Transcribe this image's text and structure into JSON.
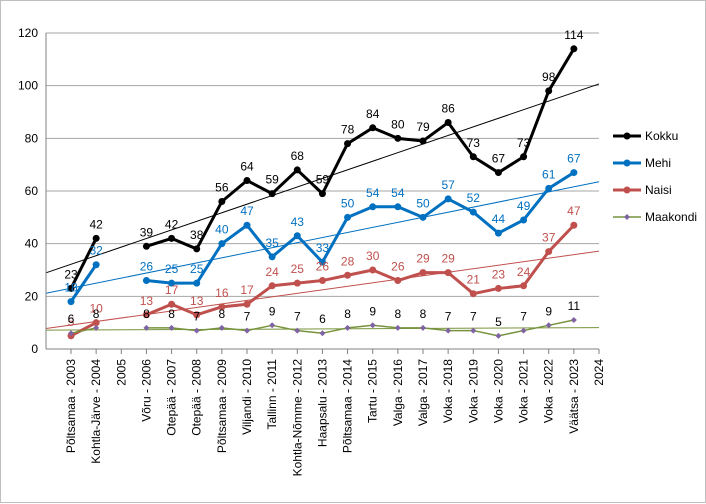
{
  "chart_data": {
    "type": "line",
    "x_positions": [
      2003,
      2004,
      2005,
      2006,
      2007,
      2008,
      2009,
      2010,
      2011,
      2012,
      2013,
      2014,
      2015,
      2016,
      2017,
      2018,
      2019,
      2020,
      2021,
      2022,
      2023,
      2024
    ],
    "categories": [
      "Põltsamaa - 2003",
      "Kohtla-Järve - 2004",
      "2005",
      "Võru - 2006",
      "Otepää - 2007",
      "Otepää - 2008",
      "Põltsamaa - 2009",
      "Viljandi - 2010",
      "Tallinn - 2011",
      "Kohtla-Nõmme - 2012",
      "Haapsalu - 2013",
      "Põltsamaa - 2014",
      "Tartu - 2015",
      "Valga - 2016",
      "Valga - 2017",
      "Voka - 2018",
      "Voka - 2019",
      "Voka - 2020",
      "Voka - 2021",
      "Voka - 2022",
      "Väätsa - 2023",
      "2024"
    ],
    "ylim": [
      0,
      120
    ],
    "yticks": [
      0,
      20,
      40,
      60,
      80,
      100,
      120
    ],
    "grid": true,
    "legend_position": "right",
    "series": [
      {
        "name": "Kokku",
        "color": "#000000",
        "values": [
          23,
          42,
          null,
          39,
          42,
          38,
          56,
          64,
          59,
          68,
          59,
          78,
          84,
          80,
          79,
          86,
          73,
          67,
          73,
          98,
          114,
          null
        ]
      },
      {
        "name": "Mehi",
        "color": "#0070c0",
        "values": [
          18,
          32,
          null,
          26,
          25,
          25,
          40,
          47,
          35,
          43,
          33,
          50,
          54,
          54,
          50,
          57,
          52,
          44,
          49,
          61,
          67,
          null
        ]
      },
      {
        "name": "Naisi",
        "color": "#c0504d",
        "values": [
          5,
          10,
          null,
          13,
          17,
          13,
          16,
          17,
          24,
          25,
          26,
          28,
          30,
          26,
          29,
          29,
          21,
          23,
          24,
          37,
          47,
          null
        ]
      },
      {
        "name": "Maakondi",
        "color": "#77933c",
        "values": [
          6,
          8,
          null,
          8,
          8,
          7,
          8,
          7,
          9,
          7,
          6,
          8,
          9,
          8,
          8,
          7,
          7,
          5,
          7,
          9,
          11,
          null
        ]
      }
    ]
  }
}
